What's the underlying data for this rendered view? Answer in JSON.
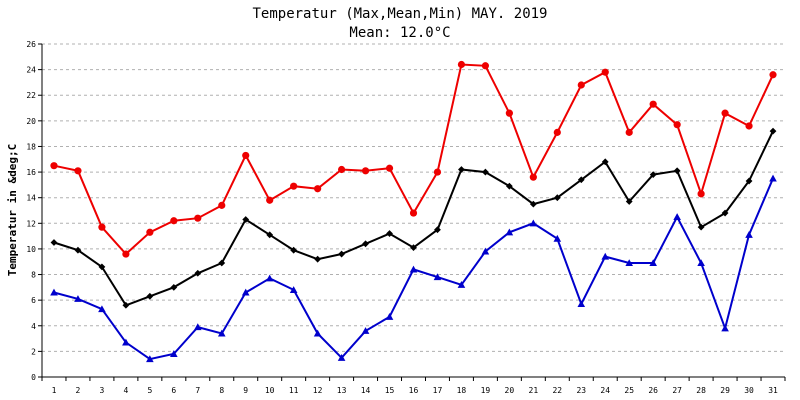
{
  "chart_data": {
    "type": "line",
    "title": "Temperatur (Max,Mean,Min) MAY. 2019",
    "subtitle": "Mean: 12.0°C",
    "ylabel": "Temperatur in &deg;C",
    "xlabel": "",
    "ylim": [
      0,
      26
    ],
    "ytick_step": 2,
    "grid": true,
    "categories": [
      "1",
      "2",
      "3",
      "4",
      "5",
      "6",
      "7",
      "8",
      "9",
      "10",
      "11",
      "12",
      "13",
      "14",
      "15",
      "16",
      "17",
      "18",
      "19",
      "20",
      "21",
      "22",
      "23",
      "24",
      "25",
      "26",
      "27",
      "28",
      "29",
      "30",
      "31"
    ],
    "series": [
      {
        "key": "max",
        "color": "#ee0000",
        "marker": "circle",
        "values": [
          16.5,
          16.1,
          11.7,
          9.6,
          11.3,
          12.2,
          12.4,
          13.4,
          17.3,
          13.8,
          14.9,
          14.7,
          16.2,
          16.1,
          16.3,
          12.8,
          16.0,
          24.4,
          24.3,
          20.6,
          15.6,
          19.1,
          22.8,
          23.8,
          19.1,
          21.3,
          19.7,
          14.3,
          20.6,
          19.6,
          23.6
        ]
      },
      {
        "key": "mean",
        "color": "#000000",
        "marker": "diamond",
        "values": [
          10.5,
          9.9,
          8.6,
          5.6,
          6.3,
          7.0,
          8.1,
          8.9,
          12.3,
          11.1,
          9.9,
          9.2,
          9.6,
          10.4,
          11.2,
          10.1,
          11.5,
          16.2,
          16.0,
          14.9,
          13.5,
          14.0,
          15.4,
          16.8,
          13.7,
          15.8,
          16.1,
          11.7,
          12.8,
          15.3,
          19.2
        ]
      },
      {
        "key": "min",
        "color": "#0000cc",
        "marker": "triangle",
        "values": [
          6.6,
          6.1,
          5.3,
          2.7,
          1.4,
          1.8,
          3.9,
          3.4,
          6.6,
          7.7,
          6.8,
          3.4,
          1.5,
          3.6,
          4.7,
          8.4,
          7.8,
          7.2,
          9.8,
          11.3,
          12.0,
          10.8,
          5.7,
          9.4,
          8.9,
          8.9,
          12.5,
          8.9,
          3.8,
          11.1,
          15.5
        ]
      }
    ]
  }
}
